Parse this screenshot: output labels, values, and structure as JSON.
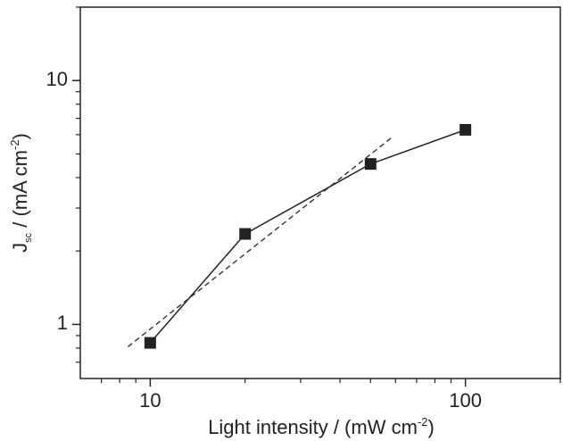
{
  "chart_data": {
    "type": "line",
    "log_x": true,
    "log_y": true,
    "x_label": {
      "main": "Light intensity / (mW cm",
      "sup": "-2",
      "end": ")"
    },
    "y_label": {
      "main": "J",
      "sub": "sc",
      "mid": " / (mA cm",
      "sup": "-2",
      "end": ")"
    },
    "series": [
      {
        "color": "#222222",
        "marker": "square",
        "dash": false,
        "x": [
          10,
          20,
          50,
          100
        ],
        "values": [
          0.84,
          2.35,
          4.55,
          6.28
        ]
      },
      {
        "color": "#333333",
        "marker": "none",
        "dash": true,
        "x": [
          8.5,
          58
        ],
        "values": [
          0.81,
          5.8
        ]
      }
    ],
    "xlim": [
      6,
      200
    ],
    "ylim": [
      0.6,
      20
    ],
    "xticks": [
      10,
      100
    ],
    "yticks": [
      1,
      10
    ],
    "xminor": [
      7,
      8,
      9,
      20,
      30,
      40,
      50,
      60,
      70,
      80,
      90,
      200
    ],
    "yminor": [
      0.7,
      0.8,
      0.9,
      2,
      3,
      4,
      5,
      6,
      7,
      8,
      9,
      20
    ]
  }
}
